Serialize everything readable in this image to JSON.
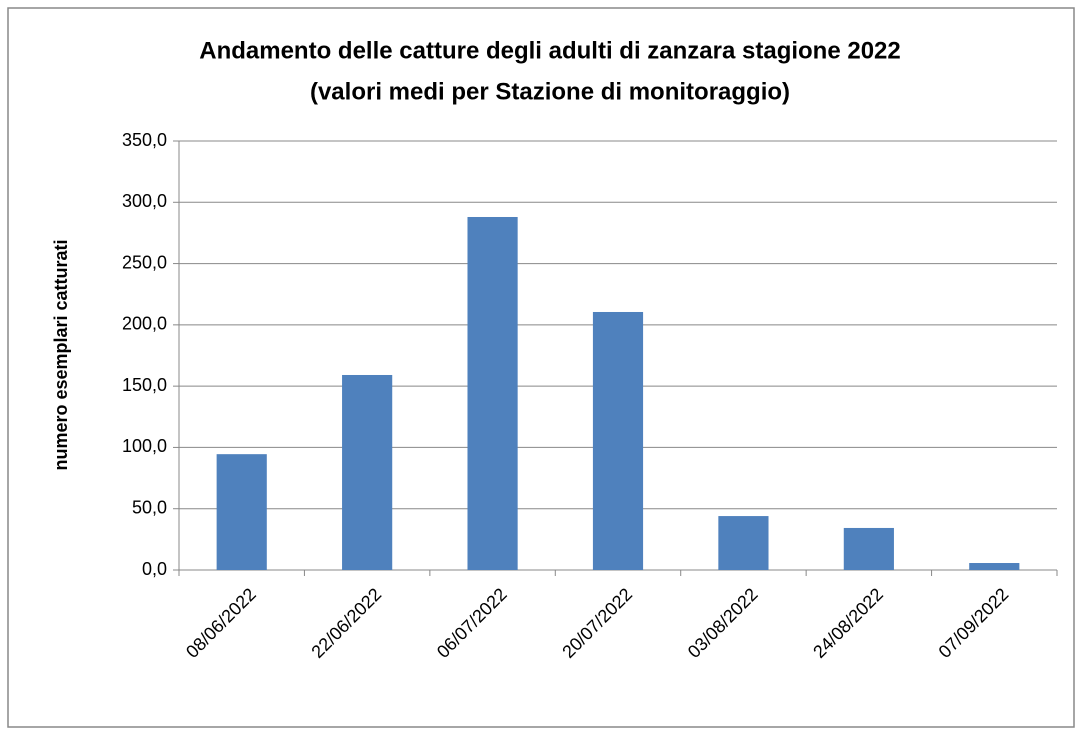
{
  "chart_data": {
    "type": "bar",
    "title": "Andamento delle catture degli adulti di zanzara stagione 2022",
    "subtitle": "(valori medi per Stazione di monitoraggio)",
    "y_label": "numero esemplari catturati",
    "categories": [
      "08/06/2022",
      "22/06/2022",
      "06/07/2022",
      "20/07/2022",
      "03/08/2022",
      "24/08/2022",
      "07/09/2022"
    ],
    "values": [
      94.5,
      159.1,
      288.0,
      210.5,
      44.0,
      34.3,
      5.7
    ],
    "color": "#4f81bd",
    "ylim": [
      0,
      350
    ],
    "yticks": [
      {
        "value": 0,
        "label": "0,0"
      },
      {
        "value": 50,
        "label": "50,0"
      },
      {
        "value": 100,
        "label": "100,0"
      },
      {
        "value": 150,
        "label": "150,0"
      },
      {
        "value": 200,
        "label": "200,0"
      },
      {
        "value": 250,
        "label": "250,0"
      },
      {
        "value": 300,
        "label": "300,0"
      },
      {
        "value": 350,
        "label": "350,0"
      }
    ],
    "grid": true
  }
}
